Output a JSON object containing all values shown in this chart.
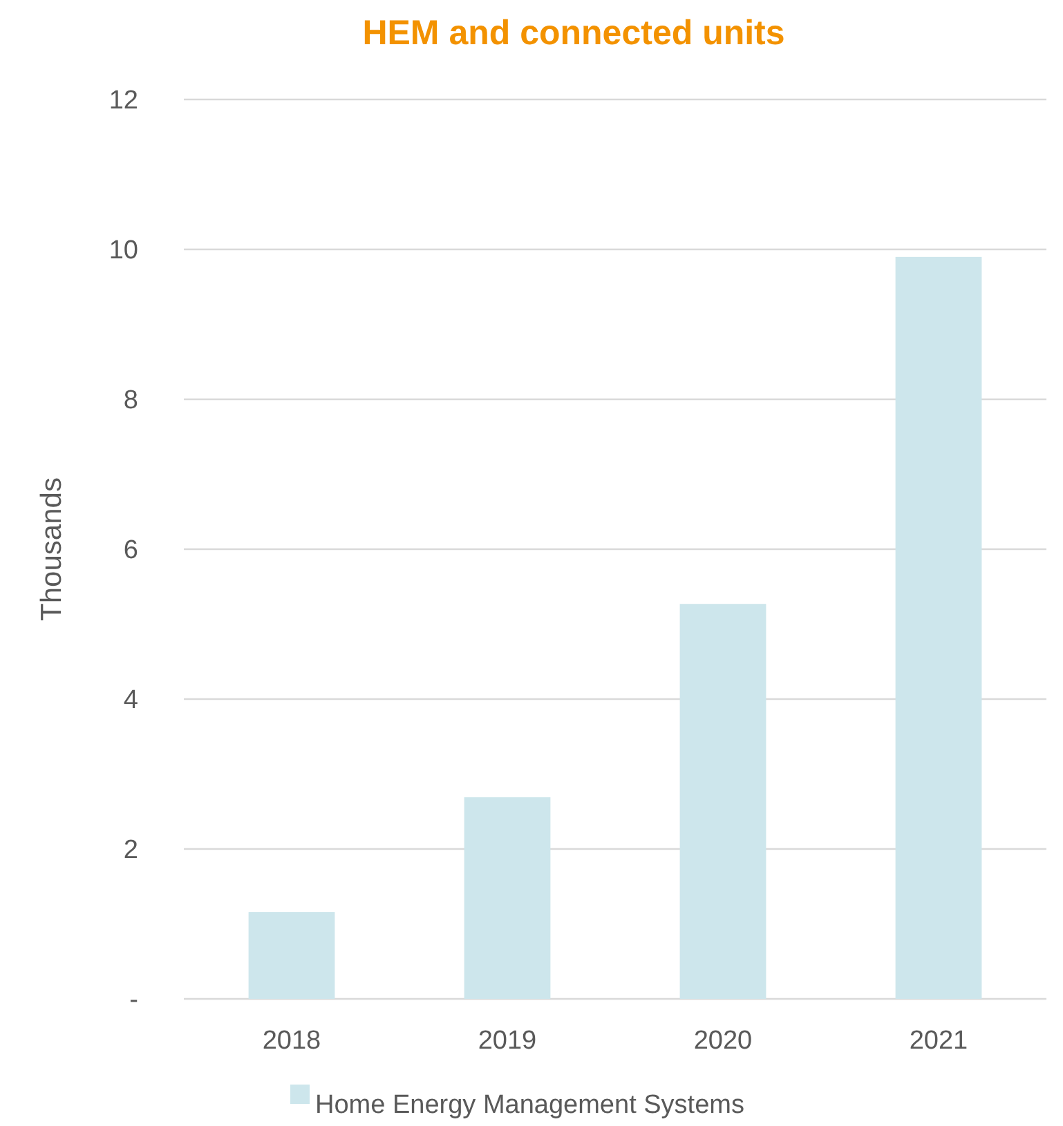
{
  "chart_data": {
    "type": "bar",
    "title": "HEM and connected units",
    "ylabel": "Thousands",
    "categories": [
      "2018",
      "2019",
      "2020",
      "2021"
    ],
    "series": [
      {
        "name": "Home Energy Management Systems",
        "color": "#cde6ec",
        "values": [
          1.16,
          2.69,
          5.27,
          9.9
        ]
      }
    ],
    "ylim": [
      0,
      12
    ],
    "yticks": [
      {
        "value": 0,
        "label": "-"
      },
      2,
      4,
      6,
      8,
      10,
      12
    ],
    "grid": "y",
    "legend": "bottom"
  }
}
